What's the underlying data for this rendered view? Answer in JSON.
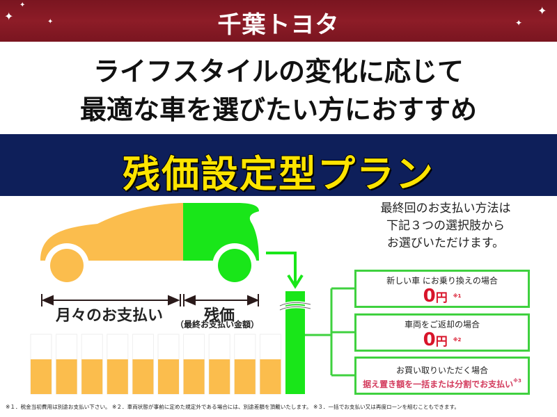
{
  "header": {
    "logo": "千葉トヨタ"
  },
  "intro": {
    "line1": "ライフスタイルの変化に応じて",
    "line2": "最適な車を選びたい方におすすめ"
  },
  "plan_title": "残価設定型プラン",
  "diagram": {
    "monthly_label": "月々のお支払い",
    "residual_label": "残価",
    "residual_sub": "（最終お支払い金額）",
    "monthly_bar_count": 10,
    "colors": {
      "monthly": "#fbbd4d",
      "residual": "#19e619",
      "accent": "#d8142a",
      "navy": "#0e1f5a",
      "title_yellow": "#fde400"
    }
  },
  "explanation": {
    "line1": "最終回のお支払い方法は",
    "line2": "下記３つの選択肢から",
    "line3": "お選びいただけます。"
  },
  "options": [
    {
      "title": "新しい車 にお乗り換えの場合",
      "amount": "0",
      "unit": "円",
      "note": "※1"
    },
    {
      "title": "車両をご返却の場合",
      "amount": "0",
      "unit": "円",
      "note": "※2"
    },
    {
      "title": "お買い取りいただく場合",
      "detail": "据え置き額を一括または分割でお支払い",
      "note": "※3"
    }
  ],
  "footnotes": "※１．税金当初費用は別途お支払い下さい。 ※２．車両状態が事前に定めた規定外である場合には、別途差額を頂戴いたします。 ※３．一括でお支払い又は再度ローンを組むこともできます。"
}
